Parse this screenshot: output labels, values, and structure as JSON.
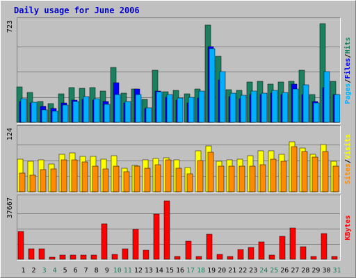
{
  "chart_data": {
    "type": "bar",
    "title": "Daily usage for June 2006",
    "x": [
      "1",
      "2",
      "3",
      "4",
      "5",
      "6",
      "7",
      "8",
      "9",
      "10",
      "11",
      "12",
      "13",
      "14",
      "15",
      "16",
      "17",
      "18",
      "19",
      "20",
      "21",
      "22",
      "23",
      "24",
      "25",
      "26",
      "27",
      "28",
      "29",
      "30",
      "31"
    ],
    "weekend_days": [
      "3",
      "4",
      "10",
      "11",
      "17",
      "18",
      "24",
      "25",
      "31"
    ],
    "panels": [
      {
        "name": "hits-files-pages",
        "ymax": 723,
        "ytick_label": "723",
        "legend": [
          {
            "text": "Pages",
            "color": "#00b0ff"
          },
          {
            "text": "/",
            "color": "#000000"
          },
          {
            "text": "Files",
            "color": "#0000ff"
          },
          {
            "text": "/",
            "color": "#000000"
          },
          {
            "text": "Hits",
            "color": "#1a8060"
          }
        ],
        "series": [
          {
            "name": "Hits",
            "color": "#1a8060",
            "values": [
              255,
              212,
              148,
              136,
              202,
              248,
              245,
              250,
              222,
              392,
              210,
              238,
              165,
              373,
              218,
              230,
              201,
              237,
              695,
              468,
              235,
              228,
              287,
              290,
              272,
              285,
              290,
              372,
              196,
              704,
              290
            ]
          },
          {
            "name": "Files",
            "color": "#0000ff",
            "values": [
              150,
              140,
              115,
              100,
              140,
              160,
              165,
              160,
              150,
              280,
              140,
              240,
              100,
              225,
              180,
              160,
              140,
              175,
              540,
              300,
              185,
              170,
              200,
              200,
              210,
              200,
              270,
              200,
              150,
              250,
              200
            ]
          },
          {
            "name": "Pages",
            "color": "#00b0ff",
            "values": [
              170,
              145,
              88,
              80,
              125,
              150,
              185,
              170,
              130,
              200,
              150,
              200,
              105,
              218,
              200,
              175,
              180,
              223,
              525,
              360,
              207,
              195,
              225,
              210,
              230,
              215,
              240,
              265,
              140,
              360,
              200
            ]
          }
        ]
      },
      {
        "name": "visits-sites",
        "ymax": 124,
        "ytick_label": "124",
        "legend": [
          {
            "text": "Sites",
            "color": "#ff8c00"
          },
          {
            "text": "/",
            "color": "#000000"
          },
          {
            "text": "Visits",
            "color": "#ffff00"
          }
        ],
        "series": [
          {
            "name": "Visits",
            "color": "#ffff00",
            "values": [
              64,
              60,
              62,
              54,
              73,
              76,
              70,
              70,
              64,
              71,
              47,
              52,
              63,
              66,
              67,
              62,
              48,
              81,
              90,
              60,
              62,
              64,
              71,
              80,
              81,
              74,
              98,
              86,
              74,
              92,
              60
            ]
          },
          {
            "name": "Sites",
            "color": "#ff8c00",
            "values": [
              37,
              33,
              43,
              45,
              63,
              63,
              58,
              51,
              45,
              51,
              40,
              50,
              47,
              53,
              62,
              46,
              35,
              61,
              78,
              51,
              50,
              50,
              50,
              53,
              64,
              60,
              89,
              79,
              68,
              79,
              50
            ]
          }
        ]
      },
      {
        "name": "kbytes",
        "ymax": 37667,
        "ytick_label": "37667",
        "legend": [
          {
            "text": "KBytes",
            "color": "#ff0000"
          }
        ],
        "series": [
          {
            "name": "KBytes",
            "color": "#ff0000",
            "values": [
              17000,
              6500,
              6500,
              1200,
              2400,
              2400,
              2400,
              2400,
              22000,
              3200,
              6500,
              18600,
              5500,
              27700,
              35800,
              1600,
              11200,
              1600,
              15300,
              3000,
              1600,
              6200,
              7300,
              10600,
              2400,
              14000,
              19100,
              7700,
              1600,
              16000,
              1600
            ]
          }
        ]
      }
    ]
  }
}
